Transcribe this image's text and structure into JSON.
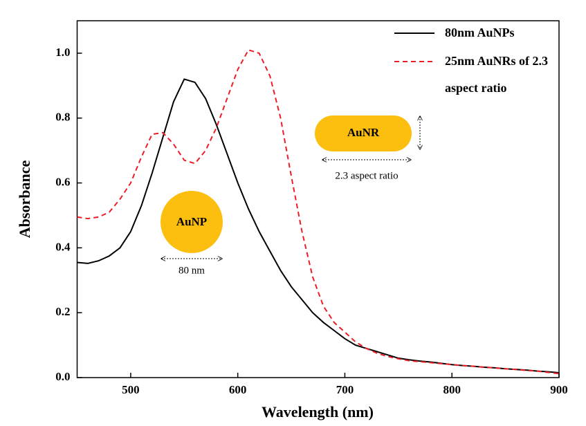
{
  "chart_data": {
    "type": "line",
    "xlabel": "Wavelength (nm)",
    "ylabel": "Absorbance",
    "x": [
      450,
      460,
      470,
      480,
      490,
      500,
      510,
      520,
      530,
      540,
      550,
      560,
      570,
      580,
      590,
      600,
      610,
      620,
      630,
      640,
      650,
      660,
      670,
      680,
      690,
      700,
      710,
      720,
      730,
      740,
      750,
      760,
      770,
      780,
      790,
      800,
      810,
      820,
      830,
      840,
      850,
      860,
      870,
      880,
      890,
      900
    ],
    "series": [
      {
        "name": "80nm AuNPs",
        "color": "#000000",
        "dash": false,
        "values": [
          0.355,
          0.352,
          0.36,
          0.375,
          0.4,
          0.45,
          0.53,
          0.63,
          0.74,
          0.85,
          0.92,
          0.91,
          0.86,
          0.78,
          0.69,
          0.6,
          0.52,
          0.45,
          0.39,
          0.33,
          0.28,
          0.24,
          0.2,
          0.17,
          0.145,
          0.12,
          0.1,
          0.09,
          0.08,
          0.07,
          0.06,
          0.055,
          0.051,
          0.048,
          0.044,
          0.04,
          0.037,
          0.035,
          0.032,
          0.03,
          0.027,
          0.025,
          0.023,
          0.02,
          0.018,
          0.015
        ]
      },
      {
        "name": "25nm AuNRs of 2.3 aspect ratio",
        "color": "#ee1c25",
        "dash": true,
        "values": [
          0.495,
          0.49,
          0.495,
          0.51,
          0.55,
          0.6,
          0.68,
          0.75,
          0.755,
          0.72,
          0.67,
          0.66,
          0.7,
          0.77,
          0.86,
          0.95,
          1.01,
          1.0,
          0.93,
          0.8,
          0.62,
          0.45,
          0.31,
          0.22,
          0.17,
          0.14,
          0.11,
          0.09,
          0.075,
          0.065,
          0.058,
          0.052,
          0.049,
          0.046,
          0.043,
          0.04,
          0.037,
          0.035,
          0.032,
          0.03,
          0.027,
          0.025,
          0.022,
          0.02,
          0.016,
          0.012
        ]
      }
    ],
    "xlim": [
      450,
      900
    ],
    "xticks": [
      500,
      600,
      700,
      800,
      900
    ],
    "ylim": [
      0,
      1.1
    ],
    "yticks": [
      {
        "value": 0,
        "label": "0.0"
      },
      0.2,
      0.4,
      0.6,
      0.8,
      {
        "value": 1,
        "label": "1.0"
      }
    ],
    "grid": false,
    "legend": "upper right",
    "annotations": [
      "AuNP",
      "80 nm",
      "AuNR",
      "2.3 aspect ratio"
    ]
  }
}
